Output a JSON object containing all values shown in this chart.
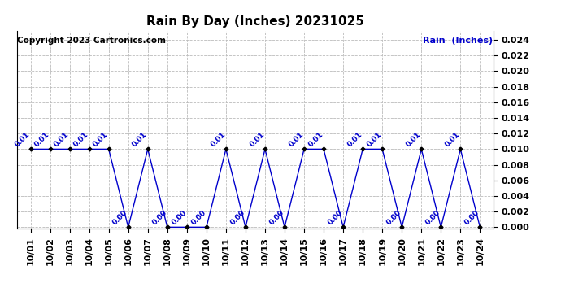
{
  "title": "Rain By Day (Inches) 20231025",
  "copyright_text": "Copyright 2023 Cartronics.com",
  "legend_label": "Rain  (Inches)",
  "dates": [
    "10/01",
    "10/02",
    "10/03",
    "10/04",
    "10/05",
    "10/06",
    "10/07",
    "10/08",
    "10/09",
    "10/10",
    "10/11",
    "10/12",
    "10/13",
    "10/14",
    "10/15",
    "10/16",
    "10/17",
    "10/18",
    "10/19",
    "10/20",
    "10/21",
    "10/22",
    "10/23",
    "10/24"
  ],
  "values": [
    0.01,
    0.01,
    0.01,
    0.01,
    0.01,
    0.0,
    0.01,
    0.0,
    0.0,
    0.0,
    0.01,
    0.0,
    0.01,
    0.0,
    0.01,
    0.01,
    0.0,
    0.01,
    0.01,
    0.0,
    0.01,
    0.0,
    0.01,
    0.0
  ],
  "line_color": "#0000cc",
  "marker_color": "#000000",
  "label_color": "#0000cc",
  "grid_color": "#bbbbbb",
  "background_color": "#ffffff",
  "ylim": [
    -0.0002,
    0.0252
  ],
  "yticks": [
    0.0,
    0.002,
    0.004,
    0.006,
    0.008,
    0.01,
    0.012,
    0.014,
    0.016,
    0.018,
    0.02,
    0.022,
    0.024
  ],
  "title_fontsize": 11,
  "label_fontsize": 6.5,
  "tick_fontsize": 8,
  "copyright_fontsize": 7.5,
  "legend_fontsize": 8
}
